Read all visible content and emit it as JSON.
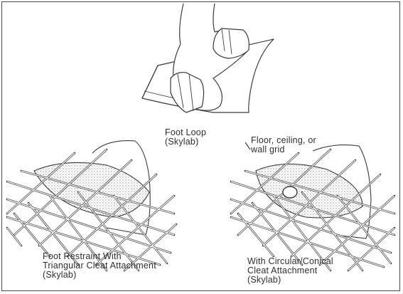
{
  "labels": {
    "foot_loop": "Foot Loop\n(Skylab)",
    "floor_grid": "Floor, ceiling, or\nwall grid",
    "triangular": "Foot Restraint With\nTriangular Cleat Attachment\n(Skylab)",
    "circular": "With Circular/Conical\nCleat Attachment\n(Skylab)"
  },
  "colors": {
    "line": "#3a3a3a",
    "stipple": "#8a8a8a",
    "frame": "#4a4a4a"
  }
}
